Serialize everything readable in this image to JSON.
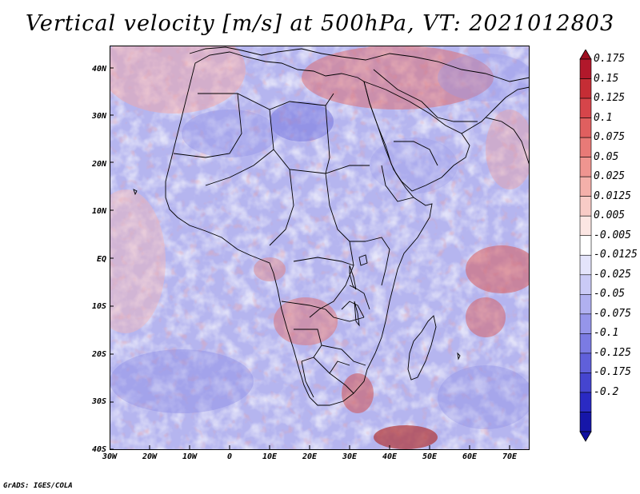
{
  "title": "Vertical velocity [m/s] at 500hPa, VT: 2021012803",
  "footer": "GrADS: IGES/COLA",
  "map": {
    "region": "Africa and western Indian Ocean",
    "lon_range": [
      -30,
      75
    ],
    "lat_range": [
      -40,
      45
    ],
    "x_ticks": [
      "30W",
      "20W",
      "10W",
      "0",
      "10E",
      "20E",
      "30E",
      "40E",
      "50E",
      "60E",
      "70E"
    ],
    "x_tick_values": [
      -30,
      -20,
      -10,
      0,
      10,
      20,
      30,
      40,
      50,
      60,
      70
    ],
    "y_ticks": [
      "40N",
      "30N",
      "20N",
      "10N",
      "EQ",
      "10S",
      "20S",
      "30S",
      "40S"
    ],
    "y_tick_values": [
      40,
      30,
      20,
      10,
      0,
      -10,
      -20,
      -30,
      -40
    ]
  },
  "colorbar": {
    "labels": [
      "0.175",
      "0.15",
      "0.125",
      "0.1",
      "0.075",
      "0.05",
      "0.025",
      "0.0125",
      "0.005",
      "-0.005",
      "-0.0125",
      "-0.025",
      "-0.05",
      "-0.075",
      "-0.1",
      "-0.125",
      "-0.175",
      "-0.2"
    ],
    "colors": [
      "#b2182b",
      "#c52d35",
      "#d6454a",
      "#e05f5f",
      "#e87a77",
      "#ef9590",
      "#f4b0aa",
      "#f8cbc6",
      "#fce6e3",
      "#ffffff",
      "#e4e4fb",
      "#cacaf6",
      "#b0b0f0",
      "#9595ea",
      "#7b7be3",
      "#6060da",
      "#4545cf",
      "#2a2ac3",
      "#1616a8"
    ],
    "top_color": "#9e1020",
    "bottom_color": "#1010a0"
  },
  "colors": {
    "map_background": "#b3b3ef",
    "coastline": "#000000"
  }
}
